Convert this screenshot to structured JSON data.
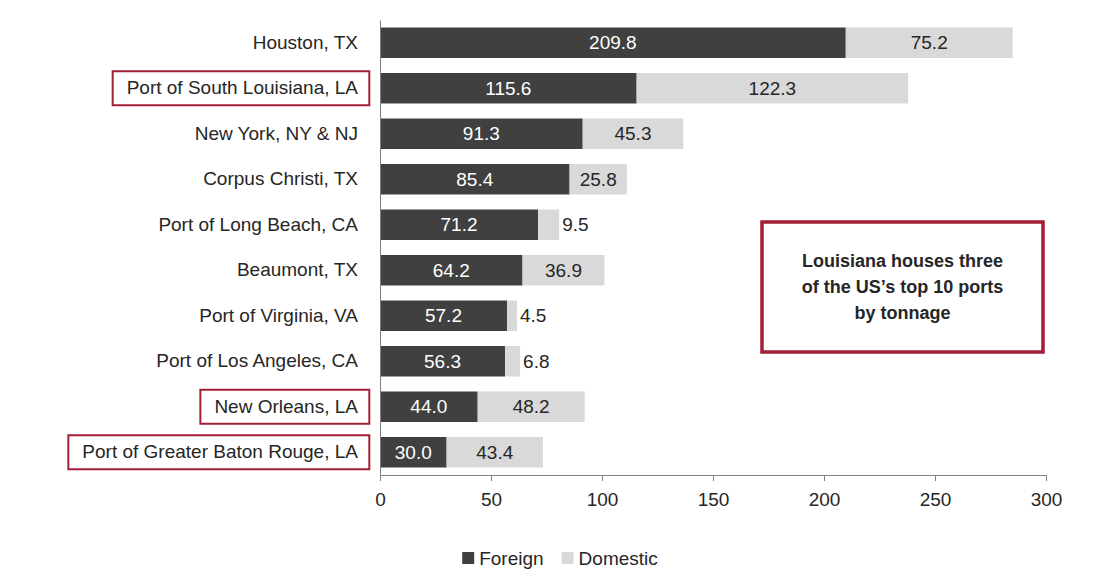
{
  "chart_data": {
    "type": "bar",
    "orientation": "horizontal",
    "stacked": true,
    "data_labels": true,
    "grid": false,
    "legend": "bottom",
    "annotation": "Louisiana houses three of the US’s top 10 ports by tonnage",
    "categories": [
      "Houston, TX",
      "Port of South Louisiana, LA",
      "New York, NY & NJ",
      "Corpus Christi, TX",
      "Port of Long Beach, CA",
      "Beaumont, TX",
      "Port of Virginia, VA",
      "Port of Los Angeles, CA",
      "New Orleans, LA",
      "Port of Greater Baton Rouge, LA"
    ],
    "series": [
      {
        "name": "Foreign",
        "color": "#404040",
        "values": [
          209.8,
          115.6,
          91.3,
          85.4,
          71.2,
          64.2,
          57.2,
          56.3,
          44.0,
          30.0
        ],
        "value_labels": [
          "209.8",
          "115.6",
          "91.3",
          "85.4",
          "71.2",
          "64.2",
          "57.2",
          "56.3",
          "44.0",
          "30.0"
        ]
      },
      {
        "name": "Domestic",
        "color": "#d9d9d9",
        "values": [
          75.2,
          122.3,
          45.3,
          25.8,
          9.5,
          36.9,
          4.5,
          6.8,
          48.2,
          43.4
        ],
        "value_labels": [
          "75.2",
          "122.3",
          "45.3",
          "25.8",
          "9.5",
          "36.9",
          "4.5",
          "6.8",
          "48.2",
          "43.4"
        ]
      }
    ],
    "xlim": [
      0,
      300
    ],
    "xticks": [
      0,
      50,
      100,
      150,
      200,
      250,
      300
    ]
  }
}
